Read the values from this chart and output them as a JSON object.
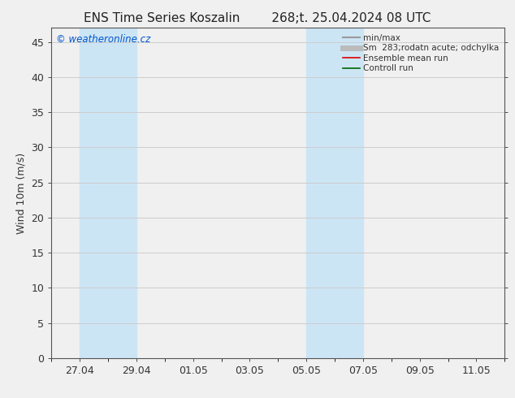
{
  "title_left": "ENS Time Series Koszalin",
  "title_right": "268;t. 25.04.2024 08 UTC",
  "ylabel": "Wind 10m (m/s)",
  "yticks": [
    0,
    5,
    10,
    15,
    20,
    25,
    30,
    35,
    40,
    45
  ],
  "ylim": [
    0,
    47
  ],
  "xtick_labels": [
    "27.04",
    "29.04",
    "01.05",
    "03.05",
    "05.05",
    "07.05",
    "09.05",
    "11.05"
  ],
  "xtick_positions": [
    2,
    4,
    6,
    8,
    10,
    12,
    14,
    16
  ],
  "xlim": [
    1,
    17
  ],
  "shaded_regions": [
    {
      "x_start": 2.0,
      "x_end": 4.0,
      "color": "#cce5f5"
    },
    {
      "x_start": 10.0,
      "x_end": 12.0,
      "color": "#cce5f5"
    }
  ],
  "watermark_text": "© weatheronline.cz",
  "watermark_color": "#0055cc",
  "legend_entries": [
    {
      "label": "min/max",
      "color": "#999999",
      "lw": 1.5
    },
    {
      "label": "Sm  283;rodatn acute; odchylka",
      "color": "#bbbbbb",
      "lw": 5
    },
    {
      "label": "Ensemble mean run",
      "color": "#dd0000",
      "lw": 1.2
    },
    {
      "label": "Controll run",
      "color": "#006600",
      "lw": 1.2
    }
  ],
  "background_color": "#f0f0f0",
  "plot_bg_color": "#f0f0f0",
  "grid_color": "#cccccc",
  "spine_color": "#555555",
  "tick_color": "#333333",
  "font_size": 9,
  "title_font_size": 11
}
